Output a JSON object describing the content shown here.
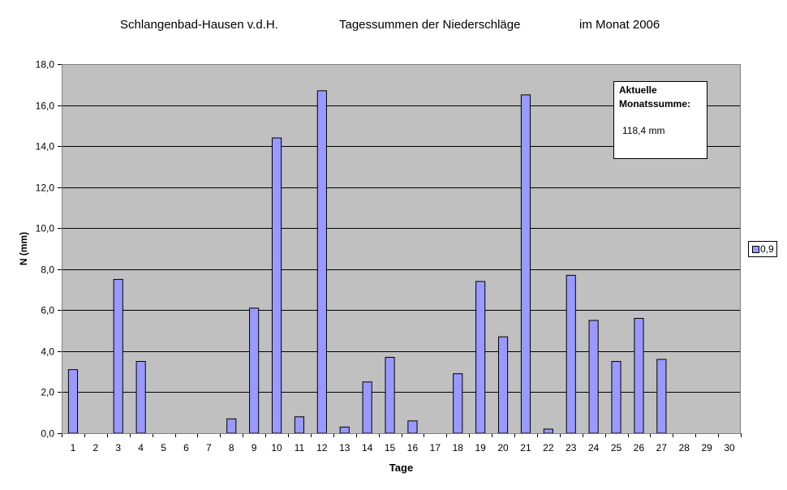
{
  "title_parts": [
    "Schlangenbad-Hausen v.d.H.",
    "Tagessummen der Niederschläge",
    "im Monat 2006"
  ],
  "annotation": {
    "heading": "Aktuelle Monatssumme:",
    "value": "118,4  mm"
  },
  "colors": {
    "plot_bg": "#c0c0c0",
    "bar": "#9999ff",
    "bar_border": "#000000",
    "grid": "#000000"
  },
  "chart_data": {
    "type": "bar",
    "xlabel": "Tage",
    "ylabel": "N (mm)",
    "ylim": [
      0,
      18
    ],
    "ytick_step": 2,
    "grid": true,
    "legend_position": "right",
    "categories": [
      "1",
      "2",
      "3",
      "4",
      "5",
      "6",
      "7",
      "8",
      "9",
      "10",
      "11",
      "12",
      "13",
      "14",
      "15",
      "16",
      "17",
      "18",
      "19",
      "20",
      "21",
      "22",
      "23",
      "24",
      "25",
      "26",
      "27",
      "28",
      "29",
      "30"
    ],
    "series": [
      {
        "name": "0,9",
        "values": [
          3.1,
          0,
          7.5,
          3.5,
          0,
          0,
          0,
          0.7,
          6.1,
          14.4,
          0.8,
          16.7,
          0.3,
          2.5,
          3.7,
          0.6,
          0,
          2.9,
          7.4,
          4.7,
          16.5,
          0.2,
          7.7,
          5.5,
          3.5,
          5.6,
          3.6,
          0,
          0,
          0
        ]
      }
    ]
  }
}
